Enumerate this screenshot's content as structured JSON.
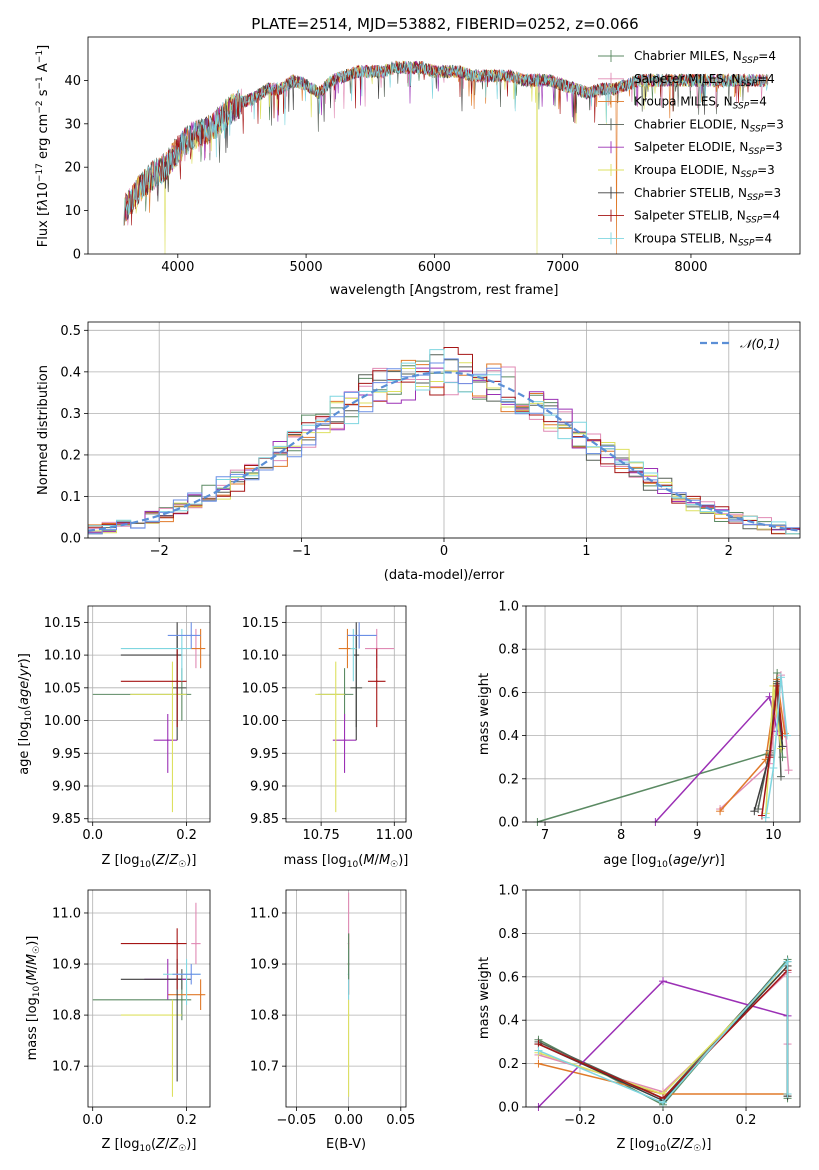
{
  "figure_title": "PLATE=2514, MJD=53882, FIBERID=0252, z=0.066",
  "series_colors": [
    "#5b8a63",
    "#e08ab4",
    "#e07a2a",
    "#555f55",
    "#9b30b5",
    "#dde060",
    "#3d3d3d",
    "#a51515",
    "#7fd6e0",
    "#6b8fe6"
  ],
  "chart_data": [
    {
      "type": "line",
      "title": "PLATE=2514, MJD=53882, FIBERID=0252, z=0.066",
      "xlabel": "wavelength [Angstrom, rest frame]",
      "ylabel": "Flux [f_λ 10^-17 erg cm^-2 s^-1 A^-1]",
      "xlim": [
        3300,
        8850
      ],
      "ylim": [
        0,
        50
      ],
      "xticks": [
        4000,
        5000,
        6000,
        7000,
        8000
      ],
      "yticks": [
        0,
        10,
        20,
        30,
        40
      ],
      "grid": false,
      "legend": "top-right",
      "legend_entries": [
        {
          "model": "Chabrier MILES",
          "nssp": "4"
        },
        {
          "model": "Salpeter MILES",
          "nssp": "4"
        },
        {
          "model": "Kroupa MILES",
          "nssp": "4"
        },
        {
          "model": "Chabrier ELODIE",
          "nssp": "3"
        },
        {
          "model": "Salpeter ELODIE",
          "nssp": "3"
        },
        {
          "model": "Kroupa ELODIE",
          "nssp": "3"
        },
        {
          "model": "Chabrier STELIB",
          "nssp": "3"
        },
        {
          "model": "Salpeter STELIB",
          "nssp": "4"
        },
        {
          "model": "Kroupa STELIB",
          "nssp": "4"
        }
      ],
      "spectrum_envelope": {
        "x": [
          3580,
          3700,
          3800,
          3900,
          4000,
          4100,
          4200,
          4300,
          4400,
          4500,
          4600,
          4700,
          4800,
          4900,
          5000,
          5100,
          5200,
          5300,
          5400,
          5500,
          5600,
          5700,
          5800,
          5900,
          6000,
          6100,
          6200,
          6300,
          6400,
          6500,
          6600,
          6700,
          6800,
          6900,
          7000,
          7100,
          7200,
          7300,
          7400,
          7500,
          7600,
          7700,
          7800,
          7900,
          8000,
          8100,
          8200,
          8300,
          8400,
          8500,
          8600
        ],
        "y": [
          10,
          15,
          18,
          20,
          24,
          27,
          28,
          30,
          33,
          35,
          36,
          38,
          38,
          40,
          39,
          37,
          40,
          41,
          42,
          42,
          42,
          43,
          43,
          43,
          42,
          42,
          42,
          41,
          41,
          41,
          41,
          40,
          40,
          40,
          39,
          38,
          37,
          38,
          38,
          39,
          40,
          40,
          40,
          40,
          40,
          40,
          40,
          40,
          40,
          40,
          40
        ]
      },
      "dropouts": [
        {
          "series": "Kroupa ELODIE",
          "x": 3900
        },
        {
          "series": "Kroupa ELODIE",
          "x": 6800
        },
        {
          "series": "Kroupa MILES",
          "x": 7420
        }
      ]
    },
    {
      "type": "bar",
      "xlabel": "(data-model)/error",
      "ylabel": "Normed distribution",
      "xlim": [
        -2.5,
        2.5
      ],
      "ylim": [
        0,
        0.52
      ],
      "xticks": [
        -2,
        -1,
        0,
        1,
        2
      ],
      "yticks": [
        0.0,
        0.1,
        0.2,
        0.3,
        0.4,
        0.5
      ],
      "grid": true,
      "legend": "top-right",
      "legend_entries": [
        "𝒩(0,1)"
      ],
      "bin_width": 0.1,
      "histogram_envelope_peak": 0.45,
      "gaussian": {
        "mean": 0,
        "sigma": 1
      }
    },
    {
      "type": "scatter",
      "xlabel": "Z [log10(Z/Z☉)]",
      "ylabel": "age  [log10(age/yr)]",
      "xlim": [
        -0.01,
        0.25
      ],
      "ylim": [
        9.845,
        10.175
      ],
      "xticks": [
        0.0,
        0.2
      ],
      "yticks": [
        9.85,
        9.9,
        9.95,
        10.0,
        10.05,
        10.1,
        10.15
      ],
      "grid": true,
      "points": [
        {
          "x": 0.19,
          "y": 10.04,
          "xerr": [
            0.19,
            0.02
          ],
          "yerr": [
            0.04,
            0.04
          ]
        },
        {
          "x": 0.22,
          "y": 10.11,
          "xerr": [
            0.01,
            0.01
          ],
          "yerr": [
            0.03,
            0.03
          ]
        },
        {
          "x": 0.23,
          "y": 10.11,
          "xerr": [
            0.02,
            0.01
          ],
          "yerr": [
            0.03,
            0.03
          ]
        },
        {
          "x": 0.18,
          "y": 10.05,
          "xerr": [
            0.01,
            0.02
          ],
          "yerr": [
            0.06,
            0.08
          ]
        },
        {
          "x": 0.16,
          "y": 9.97,
          "xerr": [
            0.03,
            0.02
          ],
          "yerr": [
            0.05,
            0.04
          ]
        },
        {
          "x": 0.17,
          "y": 10.04,
          "xerr": [
            0.09,
            0.03
          ],
          "yerr": [
            0.18,
            0.05
          ]
        },
        {
          "x": 0.18,
          "y": 10.1,
          "xerr": [
            0.12,
            0.01
          ],
          "yerr": [
            0.13,
            0.05
          ]
        },
        {
          "x": 0.18,
          "y": 10.06,
          "xerr": [
            0.12,
            0.02
          ],
          "yerr": [
            0.07,
            0.05
          ]
        },
        {
          "x": 0.19,
          "y": 10.11,
          "xerr": [
            0.13,
            0.02
          ],
          "yerr": [
            0.05,
            0.03
          ]
        },
        {
          "x": 0.21,
          "y": 10.13,
          "xerr": [
            0.05,
            0.02
          ],
          "yerr": [
            0.02,
            0.02
          ]
        }
      ]
    },
    {
      "type": "scatter",
      "xlabel": "mass [log10(M/M☉)]",
      "ylabel": "",
      "xlim": [
        10.63,
        11.04
      ],
      "ylim": [
        9.845,
        10.175
      ],
      "xticks": [
        10.75,
        11.0
      ],
      "yticks": [
        9.85,
        9.9,
        9.95,
        10.0,
        10.05,
        10.1,
        10.15
      ],
      "grid": true,
      "points": [
        {
          "x": 10.83,
          "y": 10.04,
          "xerr": [
            0.09,
            0.03
          ],
          "yerr": [
            0.04,
            0.04
          ]
        },
        {
          "x": 10.94,
          "y": 10.11,
          "xerr": [
            0.04,
            0.06
          ],
          "yerr": [
            0.03,
            0.03
          ]
        },
        {
          "x": 10.84,
          "y": 10.11,
          "xerr": [
            0.03,
            0.03
          ],
          "yerr": [
            0.03,
            0.03
          ]
        },
        {
          "x": 10.87,
          "y": 10.05,
          "xerr": [
            0.02,
            0.02
          ],
          "yerr": [
            0.06,
            0.08
          ]
        },
        {
          "x": 10.83,
          "y": 9.97,
          "xerr": [
            0.04,
            0.04
          ],
          "yerr": [
            0.05,
            0.04
          ]
        },
        {
          "x": 10.8,
          "y": 10.04,
          "xerr": [
            0.07,
            0.03
          ],
          "yerr": [
            0.18,
            0.05
          ]
        },
        {
          "x": 10.87,
          "y": 10.1,
          "xerr": [
            0.01,
            0.01
          ],
          "yerr": [
            0.13,
            0.05
          ]
        },
        {
          "x": 10.94,
          "y": 10.06,
          "xerr": [
            0.03,
            0.03
          ],
          "yerr": [
            0.07,
            0.05
          ]
        },
        {
          "x": 10.86,
          "y": 10.11,
          "xerr": [
            0.01,
            0.01
          ],
          "yerr": [
            0.05,
            0.03
          ]
        },
        {
          "x": 10.88,
          "y": 10.13,
          "xerr": [
            0.04,
            0.06
          ],
          "yerr": [
            0.02,
            0.02
          ]
        }
      ]
    },
    {
      "type": "line",
      "xlabel": "age  [log10(age/yr)]",
      "ylabel": "mass weight",
      "xlim": [
        6.75,
        10.35
      ],
      "ylim": [
        0,
        1.0
      ],
      "xticks": [
        7,
        8,
        9,
        10
      ],
      "yticks": [
        0.0,
        0.2,
        0.4,
        0.6,
        0.8,
        1.0
      ],
      "grid": true,
      "series": [
        {
          "name": "Chabrier MILES",
          "x": [
            6.9,
            9.95,
            10.05,
            10.12
          ],
          "y": [
            0.0,
            0.32,
            0.69,
            0.3
          ]
        },
        {
          "name": "Salpeter MILES",
          "x": [
            9.3,
            9.95,
            10.1,
            10.2
          ],
          "y": [
            0.06,
            0.27,
            0.68,
            0.24
          ]
        },
        {
          "name": "Kroupa MILES",
          "x": [
            9.3,
            9.9,
            10.05,
            10.15
          ],
          "y": [
            0.05,
            0.29,
            0.66,
            0.41
          ]
        },
        {
          "name": "Chabrier ELODIE",
          "x": [
            9.8,
            9.95,
            10.05,
            10.1
          ],
          "y": [
            0.06,
            0.33,
            0.65,
            0.21
          ]
        },
        {
          "name": "Salpeter ELODIE",
          "x": [
            8.45,
            9.95,
            10.05
          ],
          "y": [
            0.0,
            0.58,
            0.42
          ]
        },
        {
          "name": "Kroupa ELODIE",
          "x": [
            9.9,
            10.0,
            10.1
          ],
          "y": [
            0.04,
            0.63,
            0.34
          ]
        },
        {
          "name": "Chabrier STELIB",
          "x": [
            9.75,
            9.95,
            10.05,
            10.12
          ],
          "y": [
            0.05,
            0.31,
            0.64,
            0.35
          ]
        },
        {
          "name": "Salpeter STELIB",
          "x": [
            9.85,
            9.95,
            10.05,
            10.12
          ],
          "y": [
            0.03,
            0.3,
            0.63,
            0.4
          ]
        },
        {
          "name": "Kroupa STELIB",
          "x": [
            9.9,
            10.0,
            10.1,
            10.18
          ],
          "y": [
            0.02,
            0.25,
            0.67,
            0.4
          ]
        }
      ]
    },
    {
      "type": "scatter",
      "xlabel": "Z [log10(Z/Z☉)]",
      "ylabel": "mass [log10(M/M☉)]",
      "xlim": [
        -0.01,
        0.25
      ],
      "ylim": [
        10.62,
        11.045
      ],
      "xticks": [
        0.0,
        0.2
      ],
      "yticks": [
        10.7,
        10.8,
        10.9,
        11.0
      ],
      "grid": true,
      "points": [
        {
          "x": 0.19,
          "y": 10.83,
          "xerr": [
            0.19,
            0.02
          ],
          "yerr": [
            0.04,
            0.04
          ]
        },
        {
          "x": 0.22,
          "y": 10.94,
          "xerr": [
            0.01,
            0.01
          ],
          "yerr": [
            0.04,
            0.08
          ]
        },
        {
          "x": 0.23,
          "y": 10.84,
          "xerr": [
            0.07,
            0.01
          ],
          "yerr": [
            0.03,
            0.03
          ]
        },
        {
          "x": 0.19,
          "y": 10.87,
          "xerr": [
            0.03,
            0.02
          ],
          "yerr": [
            0.02,
            0.02
          ]
        },
        {
          "x": 0.16,
          "y": 10.87,
          "xerr": [
            0.05,
            0.04
          ],
          "yerr": [
            0.04,
            0.04
          ]
        },
        {
          "x": 0.17,
          "y": 10.8,
          "xerr": [
            0.11,
            0.02
          ],
          "yerr": [
            0.16,
            0.03
          ]
        },
        {
          "x": 0.18,
          "y": 10.87,
          "xerr": [
            0.12,
            0.01
          ],
          "yerr": [
            0.2,
            0.04
          ]
        },
        {
          "x": 0.18,
          "y": 10.94,
          "xerr": [
            0.12,
            0.02
          ],
          "yerr": [
            0.09,
            0.03
          ]
        },
        {
          "x": 0.2,
          "y": 10.88,
          "xerr": [
            0.05,
            0.03
          ],
          "yerr": [
            0.06,
            0.03
          ]
        },
        {
          "x": 0.21,
          "y": 10.88,
          "xerr": [
            0.04,
            0.02
          ],
          "yerr": [
            0.02,
            0.02
          ]
        }
      ]
    },
    {
      "type": "scatter",
      "xlabel": "E(B-V)",
      "ylabel": "",
      "xlim": [
        -0.06,
        0.055
      ],
      "ylim": [
        10.62,
        11.045
      ],
      "xticks": [
        -0.05,
        0.0,
        0.05
      ],
      "yticks": [
        10.7,
        10.8,
        10.9,
        11.0
      ],
      "grid": true,
      "points": [
        {
          "x": 0.0,
          "y": 10.9,
          "yerr": [
            0.06,
            0.06
          ]
        },
        {
          "x": 0.0,
          "y": 10.94,
          "yerr": [
            0.05,
            0.1
          ]
        },
        {
          "x": 0.0,
          "y": 10.88,
          "yerr": [
            0.05,
            0.05
          ]
        },
        {
          "x": 0.0,
          "y": 10.8,
          "yerr": [
            0.16,
            0.03
          ]
        },
        {
          "x": 0.0,
          "y": 10.9,
          "yerr": [
            0.03,
            0.06
          ]
        }
      ]
    },
    {
      "type": "line",
      "xlabel": "Z [log10(Z/Z☉)]",
      "ylabel": "mass weight",
      "xlim": [
        -0.33,
        0.33
      ],
      "ylim": [
        0,
        1.0
      ],
      "xticks": [
        -0.2,
        0.0,
        0.2
      ],
      "yticks": [
        0.0,
        0.2,
        0.4,
        0.6,
        0.8,
        1.0
      ],
      "grid": true,
      "series": [
        {
          "name": "Chabrier MILES",
          "x": [
            -0.3,
            0.0,
            0.3,
            0.3
          ],
          "y": [
            0.31,
            0.01,
            0.68,
            0.04
          ]
        },
        {
          "name": "Salpeter MILES",
          "x": [
            -0.3,
            0.0,
            0.3,
            0.3
          ],
          "y": [
            0.24,
            0.07,
            0.62,
            0.29
          ]
        },
        {
          "name": "Kroupa MILES",
          "x": [
            -0.3,
            0.0,
            0.3
          ],
          "y": [
            0.2,
            0.06,
            0.06
          ]
        },
        {
          "name": "Chabrier ELODIE",
          "x": [
            -0.3,
            0.0,
            0.3,
            0.3
          ],
          "y": [
            0.3,
            0.04,
            0.67,
            0.05
          ]
        },
        {
          "name": "Salpeter ELODIE",
          "x": [
            -0.3,
            0.0,
            0.3
          ],
          "y": [
            0.0,
            0.58,
            0.42
          ]
        },
        {
          "name": "Kroupa ELODIE",
          "x": [
            -0.3,
            0.0,
            0.3
          ],
          "y": [
            0.25,
            0.06,
            0.65
          ]
        },
        {
          "name": "Chabrier STELIB",
          "x": [
            -0.3,
            0.0,
            0.3,
            0.3
          ],
          "y": [
            0.29,
            0.03,
            0.65,
            0.05
          ]
        },
        {
          "name": "Salpeter STELIB",
          "x": [
            -0.3,
            0.0,
            0.3
          ],
          "y": [
            0.29,
            0.04,
            0.63
          ]
        },
        {
          "name": "Kroupa STELIB",
          "x": [
            -0.3,
            0.0,
            0.3,
            0.3
          ],
          "y": [
            0.26,
            0.02,
            0.67,
            0.06
          ]
        }
      ]
    }
  ]
}
